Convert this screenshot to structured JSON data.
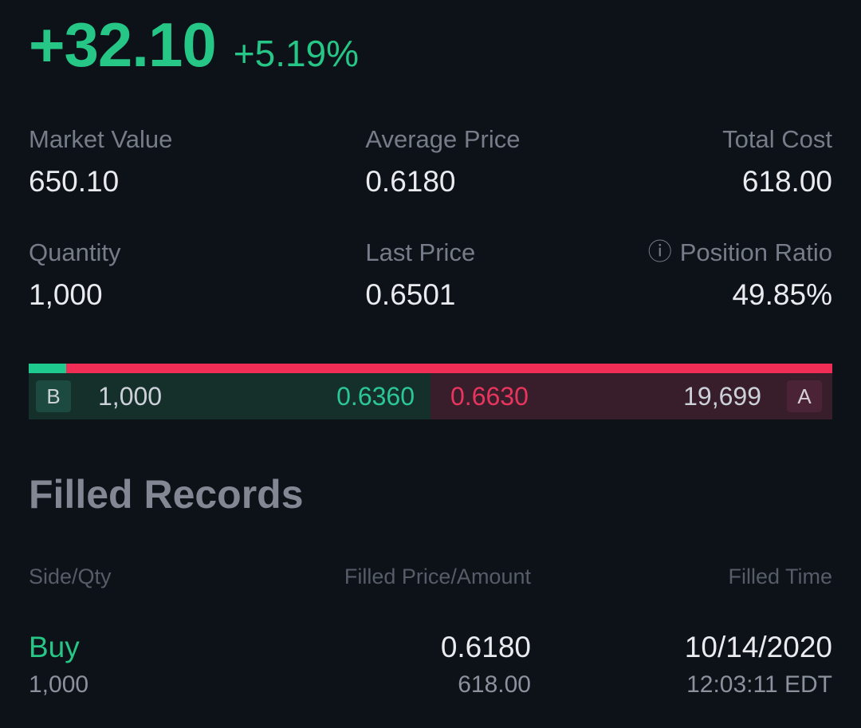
{
  "header": {
    "pnl": "+32.10",
    "pnl_percent": "+5.19%"
  },
  "stats": {
    "cells": [
      {
        "label": "Market Value",
        "value": "650.10"
      },
      {
        "label": "Average Price",
        "value": "0.6180"
      },
      {
        "label": "Total Cost",
        "value": "618.00"
      },
      {
        "label": "Quantity",
        "value": "1,000"
      },
      {
        "label": "Last Price",
        "value": "0.6501"
      },
      {
        "label": "Position Ratio",
        "value": "49.85%"
      }
    ]
  },
  "icons": {
    "info": "ⓘ"
  },
  "bid_ask": {
    "bid_badge": "B",
    "bid_size": "1,000",
    "bid_price": "0.6360",
    "ask_price": "0.6630",
    "ask_size": "19,699",
    "ask_badge": "A",
    "bid_ratio_width": "4.7%"
  },
  "filled_records": {
    "title": "Filled Records",
    "columns": [
      "Side/Qty",
      "Filled Price/Amount",
      "Filled Time"
    ],
    "rows": [
      {
        "side": "Buy",
        "qty": "1,000",
        "price": "0.6180",
        "amount": "618.00",
        "date": "10/14/2020",
        "time": "12:03:11 EDT"
      }
    ]
  },
  "colors": {
    "background": "#0d1118",
    "accent_green": "#26c686",
    "accent_red": "#f02d55",
    "bid_row_bg": "#152f2b",
    "ask_row_bg": "#381e2a",
    "bid_price_text": "#2bc795",
    "ask_price_text": "#e8355e",
    "label_gray": "#767c88",
    "value_white": "#e9ebef"
  }
}
